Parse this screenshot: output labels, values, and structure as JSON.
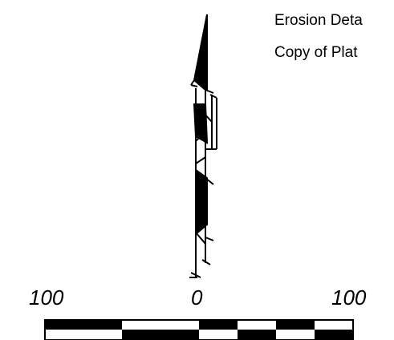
{
  "notes": {
    "line1": "Erosion Deta",
    "line2": "Copy of Plat"
  },
  "scale_bar": {
    "label_left": "100",
    "label_center": "0",
    "label_right": "100"
  }
}
